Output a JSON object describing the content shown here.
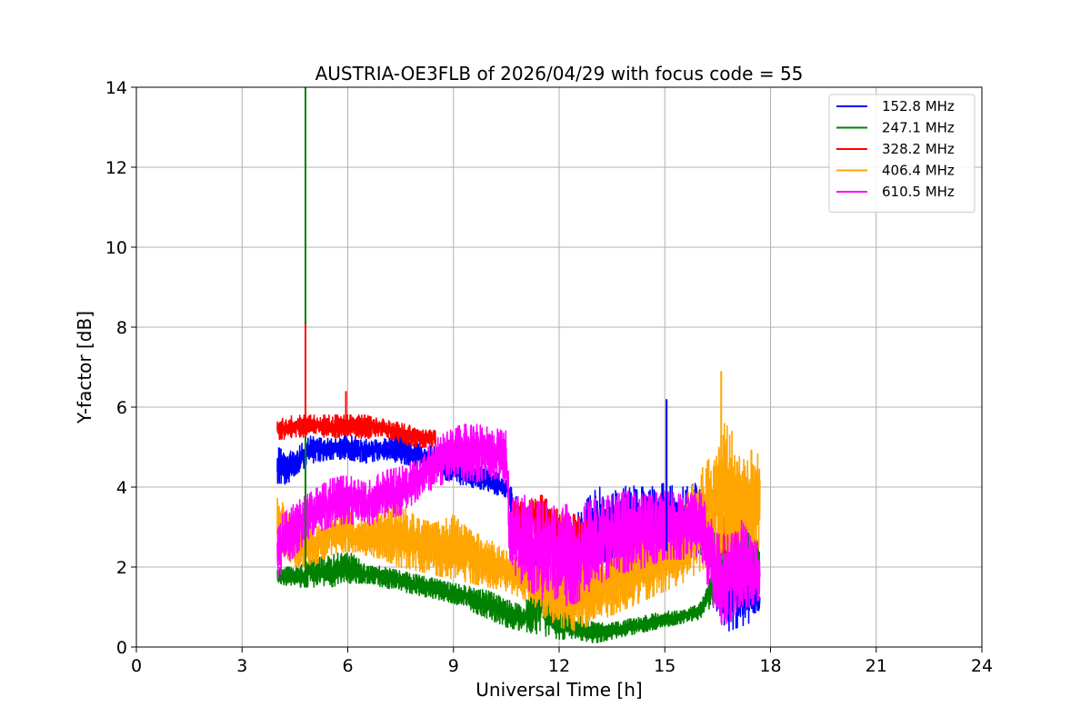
{
  "chart_data": {
    "type": "line",
    "title": "AUSTRIA-OE3FLB of 2026/04/29 with focus code = 55",
    "xlabel": "Universal Time [h]",
    "ylabel": "Y-factor [dB]",
    "xlim": [
      0,
      24
    ],
    "ylim": [
      0,
      14
    ],
    "xticks": [
      0,
      3,
      6,
      9,
      12,
      15,
      18,
      21,
      24
    ],
    "yticks": [
      0,
      2,
      4,
      6,
      8,
      10,
      12,
      14
    ],
    "grid": true,
    "legend_position": "top-right",
    "series": [
      {
        "name": "152.8 MHz",
        "color": "#0000ff",
        "x": [
          4.0,
          4.2,
          4.5,
          4.8,
          5.0,
          5.5,
          6.0,
          6.5,
          7.0,
          7.5,
          8.0,
          8.5,
          9.0,
          9.5,
          10.0,
          10.5,
          10.7,
          11.0,
          11.3,
          11.6,
          11.9,
          12.2,
          12.5,
          12.8,
          13.1,
          13.4,
          13.7,
          14.0,
          14.3,
          14.6,
          15.0,
          15.3,
          15.6,
          15.9,
          16.2,
          16.5,
          16.8,
          17.1,
          17.4,
          17.7
        ],
        "lo": [
          4.1,
          4.0,
          4.3,
          4.5,
          4.6,
          4.7,
          4.7,
          4.6,
          4.7,
          4.6,
          4.5,
          4.3,
          4.1,
          4.0,
          3.9,
          3.7,
          3.0,
          2.0,
          1.2,
          0.7,
          0.4,
          0.6,
          1.0,
          1.5,
          2.0,
          2.2,
          2.3,
          2.3,
          2.4,
          2.4,
          2.4,
          2.4,
          2.4,
          2.4,
          2.2,
          0.8,
          0.4,
          0.5,
          0.6,
          0.9
        ],
        "hi": [
          5.0,
          4.9,
          4.9,
          5.2,
          5.3,
          5.2,
          5.3,
          5.2,
          5.2,
          5.3,
          5.1,
          5.0,
          4.8,
          4.6,
          4.5,
          4.2,
          3.9,
          3.5,
          3.0,
          2.5,
          2.0,
          2.8,
          3.3,
          3.7,
          4.0,
          4.0,
          4.0,
          4.1,
          4.0,
          4.0,
          4.1,
          4.0,
          4.0,
          4.1,
          3.8,
          2.8,
          2.5,
          2.3,
          2.0,
          1.5
        ]
      },
      {
        "name": "247.1 MHz",
        "color": "#008000",
        "x": [
          4.0,
          4.5,
          5.0,
          5.5,
          6.0,
          6.5,
          7.0,
          7.5,
          8.0,
          8.5,
          9.0,
          9.5,
          10.0,
          10.5,
          11.0,
          11.5,
          12.0,
          12.5,
          13.0,
          13.5,
          14.0,
          14.5,
          15.0,
          15.5,
          16.0,
          16.5,
          17.0,
          17.7
        ],
        "lo": [
          1.6,
          1.5,
          1.5,
          1.5,
          1.6,
          1.6,
          1.5,
          1.4,
          1.3,
          1.2,
          1.1,
          0.9,
          0.7,
          0.5,
          0.4,
          0.3,
          0.2,
          0.2,
          0.1,
          0.2,
          0.3,
          0.4,
          0.5,
          0.6,
          0.7,
          1.2,
          1.6,
          1.6
        ],
        "hi": [
          2.0,
          2.0,
          2.2,
          2.3,
          2.4,
          2.1,
          2.0,
          1.9,
          1.8,
          1.7,
          1.6,
          1.5,
          1.4,
          1.2,
          1.0,
          2.5,
          1.0,
          0.8,
          0.6,
          0.6,
          0.7,
          0.8,
          0.9,
          0.9,
          1.1,
          2.2,
          3.2,
          2.6
        ]
      },
      {
        "name": "328.2 MHz",
        "color": "#ff0000",
        "x": [
          4.0,
          4.5,
          5.0,
          5.5,
          6.0,
          6.5,
          7.0,
          7.5,
          8.0,
          8.5,
          10.7,
          11.0,
          11.5,
          12.0,
          12.5,
          13.0,
          16.5,
          16.8,
          17.1
        ],
        "lo": [
          5.2,
          5.2,
          5.3,
          5.2,
          5.3,
          5.2,
          5.3,
          5.1,
          5.0,
          5.0,
          2.8,
          2.8,
          2.6,
          2.4,
          2.5,
          2.5,
          2.3,
          2.2,
          2.3
        ],
        "hi": [
          5.7,
          5.8,
          5.8,
          5.8,
          5.8,
          5.8,
          5.7,
          5.6,
          5.5,
          5.4,
          3.7,
          3.6,
          3.8,
          3.4,
          3.3,
          3.1,
          3.0,
          3.4,
          3.0
        ]
      },
      {
        "name": "406.4 MHz",
        "color": "#ffa500",
        "x": [
          4.0,
          4.5,
          5.0,
          5.5,
          6.0,
          6.5,
          7.0,
          7.5,
          8.0,
          8.5,
          9.0,
          9.5,
          10.0,
          10.5,
          11.0,
          11.5,
          12.0,
          12.5,
          13.0,
          13.5,
          14.0,
          14.5,
          15.0,
          15.5,
          16.0,
          16.5,
          16.7,
          17.0,
          17.3,
          17.7
        ],
        "lo": [
          2.5,
          2.0,
          2.0,
          2.3,
          2.4,
          2.3,
          2.2,
          2.0,
          1.9,
          1.8,
          1.7,
          1.6,
          1.5,
          1.4,
          1.2,
          0.8,
          0.5,
          0.4,
          0.6,
          0.8,
          1.0,
          1.2,
          1.4,
          1.6,
          1.9,
          2.2,
          2.5,
          2.0,
          2.2,
          2.5
        ],
        "hi": [
          3.8,
          3.2,
          3.0,
          3.2,
          3.4,
          3.2,
          3.4,
          3.6,
          3.2,
          3.1,
          3.3,
          2.9,
          2.7,
          2.4,
          2.3,
          2.3,
          2.0,
          2.4,
          2.2,
          2.5,
          2.6,
          2.9,
          3.0,
          3.6,
          4.4,
          5.0,
          5.6,
          5.3,
          5.0,
          4.8
        ]
      },
      {
        "name": "610.5 MHz",
        "color": "#ff00ff",
        "x": [
          4.0,
          4.5,
          5.0,
          5.5,
          6.0,
          6.5,
          7.0,
          7.5,
          8.0,
          8.5,
          9.0,
          9.5,
          10.0,
          10.5,
          10.6,
          11.0,
          11.5,
          12.0,
          12.5,
          13.0,
          13.5,
          14.0,
          14.5,
          15.0,
          15.5,
          16.0,
          16.5,
          16.8,
          17.1,
          17.4,
          17.7
        ],
        "lo": [
          1.7,
          2.3,
          2.8,
          3.0,
          3.1,
          3.0,
          3.2,
          3.3,
          3.7,
          4.0,
          4.2,
          4.1,
          4.2,
          4.1,
          2.0,
          1.5,
          1.2,
          1.0,
          1.1,
          1.5,
          1.8,
          1.9,
          2.0,
          2.2,
          2.2,
          2.2,
          0.6,
          0.5,
          1.0,
          1.0,
          1.2
        ],
        "hi": [
          3.2,
          3.6,
          3.9,
          4.2,
          4.3,
          4.1,
          4.4,
          4.5,
          4.7,
          5.2,
          5.5,
          5.6,
          5.5,
          5.4,
          3.7,
          3.8,
          3.6,
          3.6,
          3.5,
          3.7,
          3.8,
          3.9,
          3.8,
          3.9,
          3.8,
          3.9,
          2.8,
          2.8,
          3.3,
          2.8,
          2.5
        ]
      }
    ],
    "spikes": [
      {
        "series": "247.1 MHz",
        "x": 4.8,
        "y": 14.0
      },
      {
        "series": "328.2 MHz",
        "x": 4.8,
        "y": 8.1
      },
      {
        "series": "328.2 MHz",
        "x": 5.95,
        "y": 6.4
      },
      {
        "series": "152.8 MHz",
        "x": 15.05,
        "y": 6.2
      },
      {
        "series": "406.4 MHz",
        "x": 16.6,
        "y": 6.9
      }
    ]
  }
}
